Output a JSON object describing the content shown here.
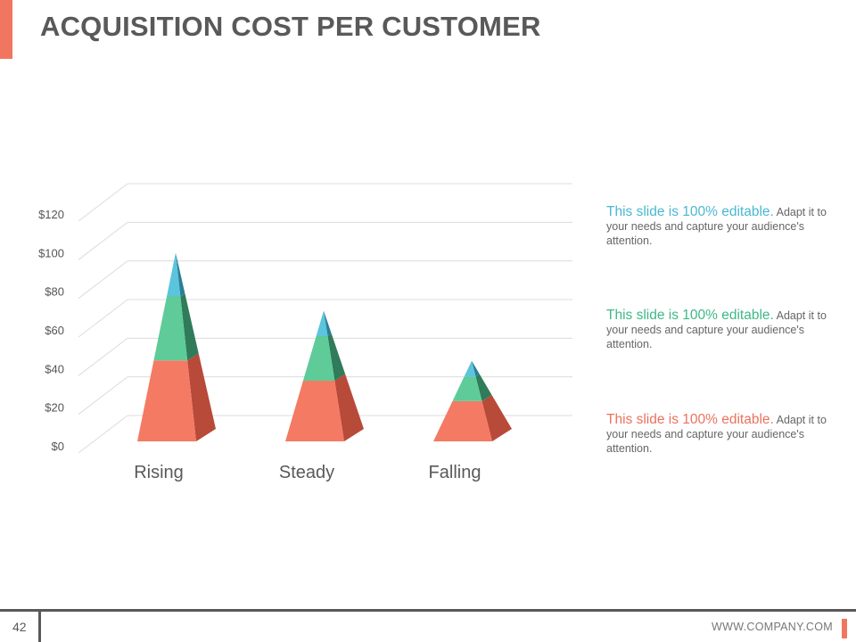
{
  "slide": {
    "title": "ACQUISITION COST PER CUSTOMER",
    "page_number": "42",
    "website": "WWW.COMPANY.COM",
    "accent_color": "#f07660"
  },
  "notes": [
    {
      "highlight": "This slide is 100% editable.",
      "text": " Adapt it to your needs and capture your audience's attention.",
      "color": "#4ab8d1"
    },
    {
      "highlight": "This slide is 100% editable.",
      "text": " Adapt it to your needs and capture your audience's attention.",
      "color": "#3fb886"
    },
    {
      "highlight": "This slide is 100% editable.",
      "text": " Adapt it to your needs and capture your audience's attention.",
      "color": "#e8735d"
    }
  ],
  "chart_data": {
    "type": "bar",
    "style": "3d-pyramid-stacked",
    "categories": [
      "Rising",
      "Steady",
      "Falling"
    ],
    "series": [
      {
        "values": [
          48,
          38,
          28
        ],
        "color": "#f47a63",
        "dark": "#b84a3a"
      },
      {
        "values": [
          38,
          28,
          17
        ],
        "color": "#5ecb98",
        "dark": "#2f7b5a"
      },
      {
        "values": [
          26,
          16,
          11
        ],
        "color": "#5cc4dc",
        "dark": "#2a7f95"
      }
    ],
    "ylim": [
      0,
      120
    ],
    "ytick_step": 20,
    "ytick_labels": [
      "$0",
      "$20",
      "$40",
      "$60",
      "$80",
      "$100",
      "$120"
    ],
    "grid": true,
    "legend": "none"
  }
}
